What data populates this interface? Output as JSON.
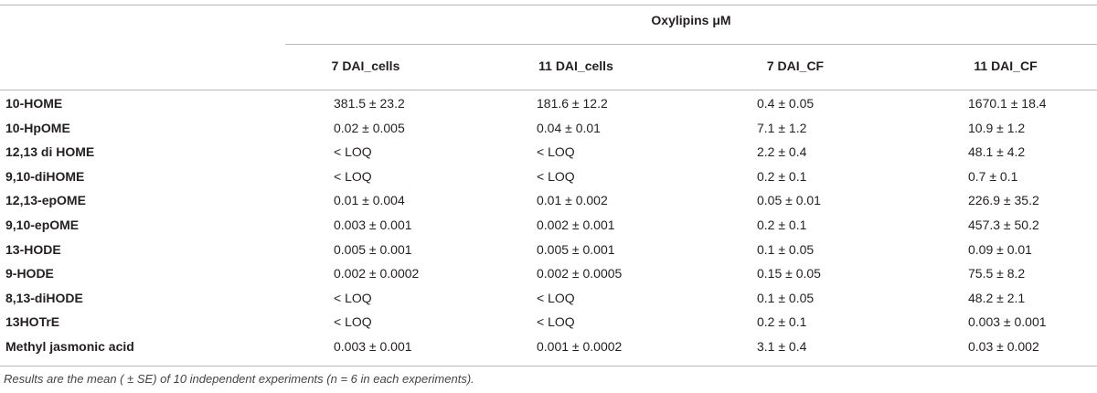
{
  "table": {
    "group_title": "Oxylipins μM",
    "columns": [
      "7 DAI_cells",
      "11 DAI_cells",
      "7 DAI_CF",
      "11 DAI_CF"
    ],
    "rows": [
      {
        "name": "10-HOME",
        "values": [
          "381.5 ± 23.2",
          "181.6 ± 12.2",
          "0.4 ± 0.05",
          "1670.1 ± 18.4"
        ]
      },
      {
        "name": "10-HpOME",
        "values": [
          "0.02 ± 0.005",
          "0.04 ± 0.01",
          "7.1 ± 1.2",
          "10.9 ± 1.2"
        ]
      },
      {
        "name": "12,13 di HOME",
        "values": [
          "< LOQ",
          "< LOQ",
          "2.2 ± 0.4",
          "48.1 ± 4.2"
        ]
      },
      {
        "name": "9,10-diHOME",
        "values": [
          "< LOQ",
          "< LOQ",
          "0.2 ± 0.1",
          "0.7 ± 0.1"
        ]
      },
      {
        "name": "12,13-epOME",
        "values": [
          "0.01 ± 0.004",
          "0.01 ± 0.002",
          "0.05 ± 0.01",
          "226.9 ± 35.2"
        ]
      },
      {
        "name": "9,10-epOME",
        "values": [
          "0.003 ± 0.001",
          "0.002 ± 0.001",
          "0.2 ± 0.1",
          "457.3 ± 50.2"
        ]
      },
      {
        "name": "13-HODE",
        "values": [
          "0.005 ± 0.001",
          "0.005 ± 0.001",
          "0.1 ± 0.05",
          "0.09 ± 0.01"
        ]
      },
      {
        "name": "9-HODE",
        "values": [
          "0.002 ± 0.0002",
          "0.002 ± 0.0005",
          "0.15 ± 0.05",
          "75.5 ± 8.2"
        ]
      },
      {
        "name": "8,13-diHODE",
        "values": [
          "< LOQ",
          "< LOQ",
          "0.1 ± 0.05",
          "48.2 ± 2.1"
        ]
      },
      {
        "name": "13HOTrE",
        "values": [
          "< LOQ",
          "< LOQ",
          "0.2 ± 0.1",
          "0.003 ± 0.001"
        ]
      },
      {
        "name": "Methyl jasmonic acid",
        "values": [
          "0.003 ± 0.001",
          "0.001 ± 0.0002",
          "3.1 ± 0.4",
          "0.03 ± 0.002"
        ]
      }
    ],
    "footnote": "Results are the mean ( ± SE) of 10 independent experiments (n = 6 in each experiments)."
  }
}
